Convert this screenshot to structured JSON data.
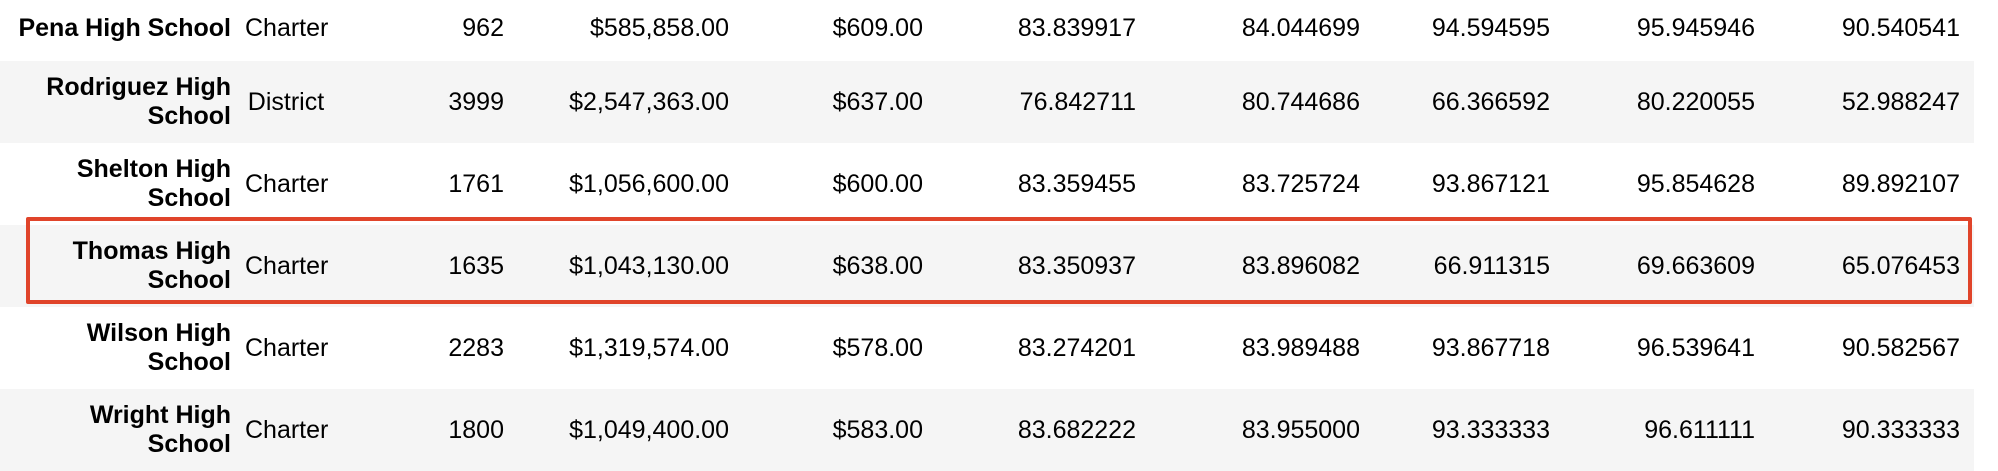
{
  "highlight_color": "#e0442a",
  "rows": [
    {
      "name": "Pena High School",
      "type": "Charter",
      "students": "962",
      "budget": "$585,858.00",
      "per_student": "$609.00",
      "avg_math": "83.839917",
      "avg_reading": "84.044699",
      "pct_math": "94.594595",
      "pct_reading": "95.945946",
      "pct_overall": "90.540541"
    },
    {
      "name": "Rodriguez High School",
      "type": "District",
      "students": "3999",
      "budget": "$2,547,363.00",
      "per_student": "$637.00",
      "avg_math": "76.842711",
      "avg_reading": "80.744686",
      "pct_math": "66.366592",
      "pct_reading": "80.220055",
      "pct_overall": "52.988247"
    },
    {
      "name": "Shelton High School",
      "type": "Charter",
      "students": "1761",
      "budget": "$1,056,600.00",
      "per_student": "$600.00",
      "avg_math": "83.359455",
      "avg_reading": "83.725724",
      "pct_math": "93.867121",
      "pct_reading": "95.854628",
      "pct_overall": "89.892107"
    },
    {
      "name": "Thomas High School",
      "type": "Charter",
      "students": "1635",
      "budget": "$1,043,130.00",
      "per_student": "$638.00",
      "avg_math": "83.350937",
      "avg_reading": "83.896082",
      "pct_math": "66.911315",
      "pct_reading": "69.663609",
      "pct_overall": "65.076453"
    },
    {
      "name": "Wilson High School",
      "type": "Charter",
      "students": "2283",
      "budget": "$1,319,574.00",
      "per_student": "$578.00",
      "avg_math": "83.274201",
      "avg_reading": "83.989488",
      "pct_math": "93.867718",
      "pct_reading": "96.539641",
      "pct_overall": "90.582567"
    },
    {
      "name": "Wright High School",
      "type": "Charter",
      "students": "1800",
      "budget": "$1,049,400.00",
      "per_student": "$583.00",
      "avg_math": "83.682222",
      "avg_reading": "83.955000",
      "pct_math": "93.333333",
      "pct_reading": "96.611111",
      "pct_overall": "90.333333"
    }
  ]
}
